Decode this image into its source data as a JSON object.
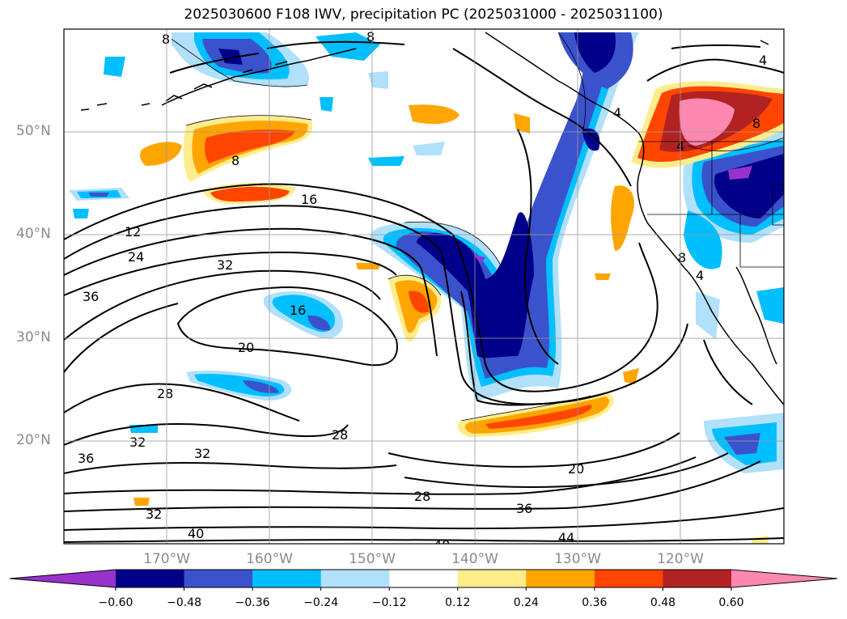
{
  "title": "2025030600 F108 IWV, precipitation PC (2025031000 - 2025031100)",
  "lat_labels": [
    "50°N",
    "40°N",
    "30°N",
    "20°N"
  ],
  "lon_labels": [
    "170°W",
    "160°W",
    "150°W",
    "140°W",
    "130°W",
    "120°W"
  ],
  "colorbar": {
    "ticks": [
      "−0.60",
      "−0.48",
      "−0.36",
      "−0.24",
      "−0.12",
      "0.12",
      "0.24",
      "0.36",
      "0.48",
      "0.60"
    ],
    "colors": [
      "#9932cc",
      "#00008b",
      "#3a52cc",
      "#00bfff",
      "#b0e0fa",
      "#ffffff",
      "#ffec8b",
      "#ffa500",
      "#ff4500",
      "#b22222",
      "#ff88b0"
    ]
  },
  "contour_labels": [
    "8",
    "8",
    "4",
    "4",
    "8",
    "4",
    "8",
    "4",
    "8",
    "16",
    "12",
    "24",
    "32",
    "36",
    "16",
    "20",
    "28",
    "32",
    "32",
    "36",
    "28",
    "28",
    "20",
    "36",
    "32",
    "40",
    "40",
    "44"
  ],
  "chart_data": {
    "type": "heatmap",
    "title": "2025030600 F108 IWV, precipitation PC (2025031000 - 2025031100)",
    "lon_range": [
      -180,
      -110
    ],
    "lat_range": [
      10,
      60
    ],
    "contour_levels": [
      4,
      8,
      12,
      16,
      20,
      24,
      28,
      32,
      36,
      40,
      44
    ],
    "colorbar_levels": [
      -0.6,
      -0.48,
      -0.36,
      -0.24,
      -0.12,
      0.12,
      0.24,
      0.36,
      0.48,
      0.6
    ],
    "grid": true
  }
}
